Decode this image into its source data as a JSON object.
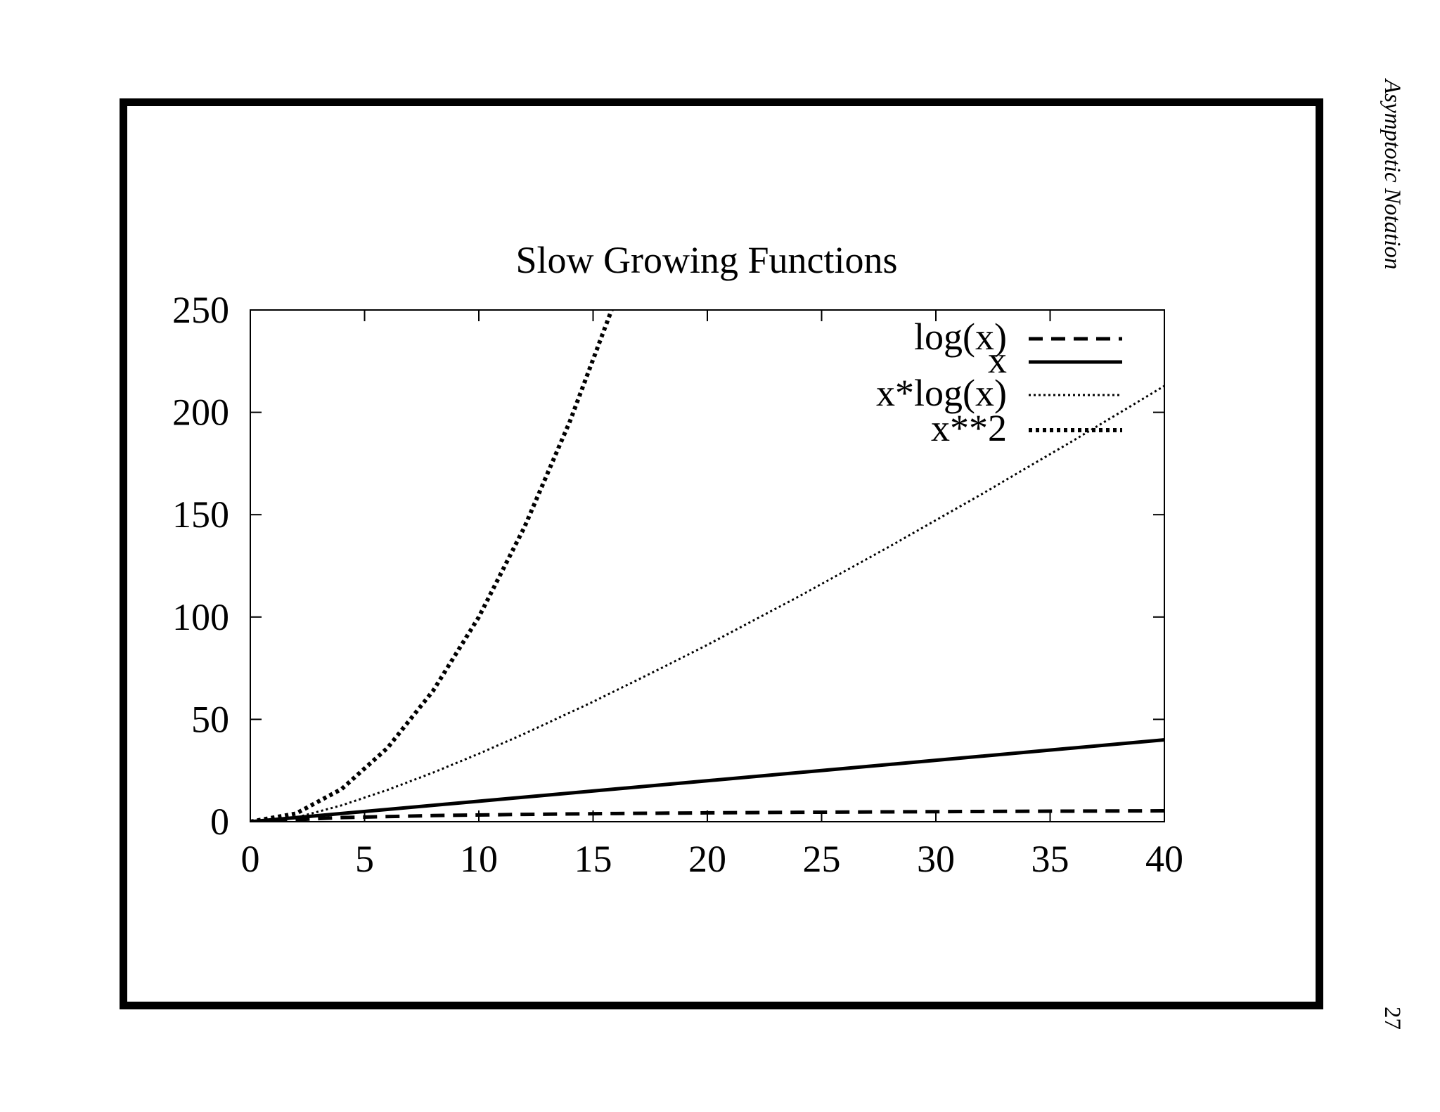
{
  "side_label": "Asymptotic Notation",
  "page_number": "27",
  "colors": {
    "line": "#000000",
    "frame": "#000000",
    "background": "#ffffff"
  },
  "chart_data": {
    "type": "line",
    "title": "Slow Growing Functions",
    "xlabel": "",
    "ylabel": "",
    "xlim": [
      0,
      40
    ],
    "ylim": [
      0,
      250
    ],
    "xticks": [
      0,
      5,
      10,
      15,
      20,
      25,
      30,
      35,
      40
    ],
    "yticks": [
      0,
      50,
      100,
      150,
      200,
      250
    ],
    "grid": false,
    "legend_position": "top-right",
    "series": [
      {
        "name": "log(x)",
        "style": "dashed",
        "x": [
          1,
          2,
          4,
          8,
          12,
          16,
          20,
          24,
          28,
          32,
          36,
          40
        ],
        "y": [
          0,
          1,
          2,
          3,
          3.58,
          4,
          4.32,
          4.58,
          4.81,
          5,
          5.17,
          5.32
        ]
      },
      {
        "name": "x",
        "style": "solid",
        "x": [
          0,
          10,
          20,
          30,
          40
        ],
        "y": [
          0,
          10,
          20,
          30,
          40
        ]
      },
      {
        "name": "x*log(x)",
        "style": "dotted",
        "x": [
          1,
          2,
          4,
          6,
          8,
          10,
          12,
          15,
          18,
          20,
          24,
          28,
          32,
          36,
          40
        ],
        "y": [
          0,
          2,
          8,
          15.5,
          24,
          33.2,
          43,
          58.6,
          75.1,
          86.4,
          110,
          134.6,
          160,
          186.1,
          212.9
        ]
      },
      {
        "name": "x**2",
        "style": "dense-dotted",
        "x": [
          0,
          2,
          4,
          6,
          8,
          10,
          12,
          14,
          15.81
        ],
        "y": [
          0,
          4,
          16,
          36,
          64,
          100,
          144,
          196,
          250
        ]
      }
    ]
  }
}
